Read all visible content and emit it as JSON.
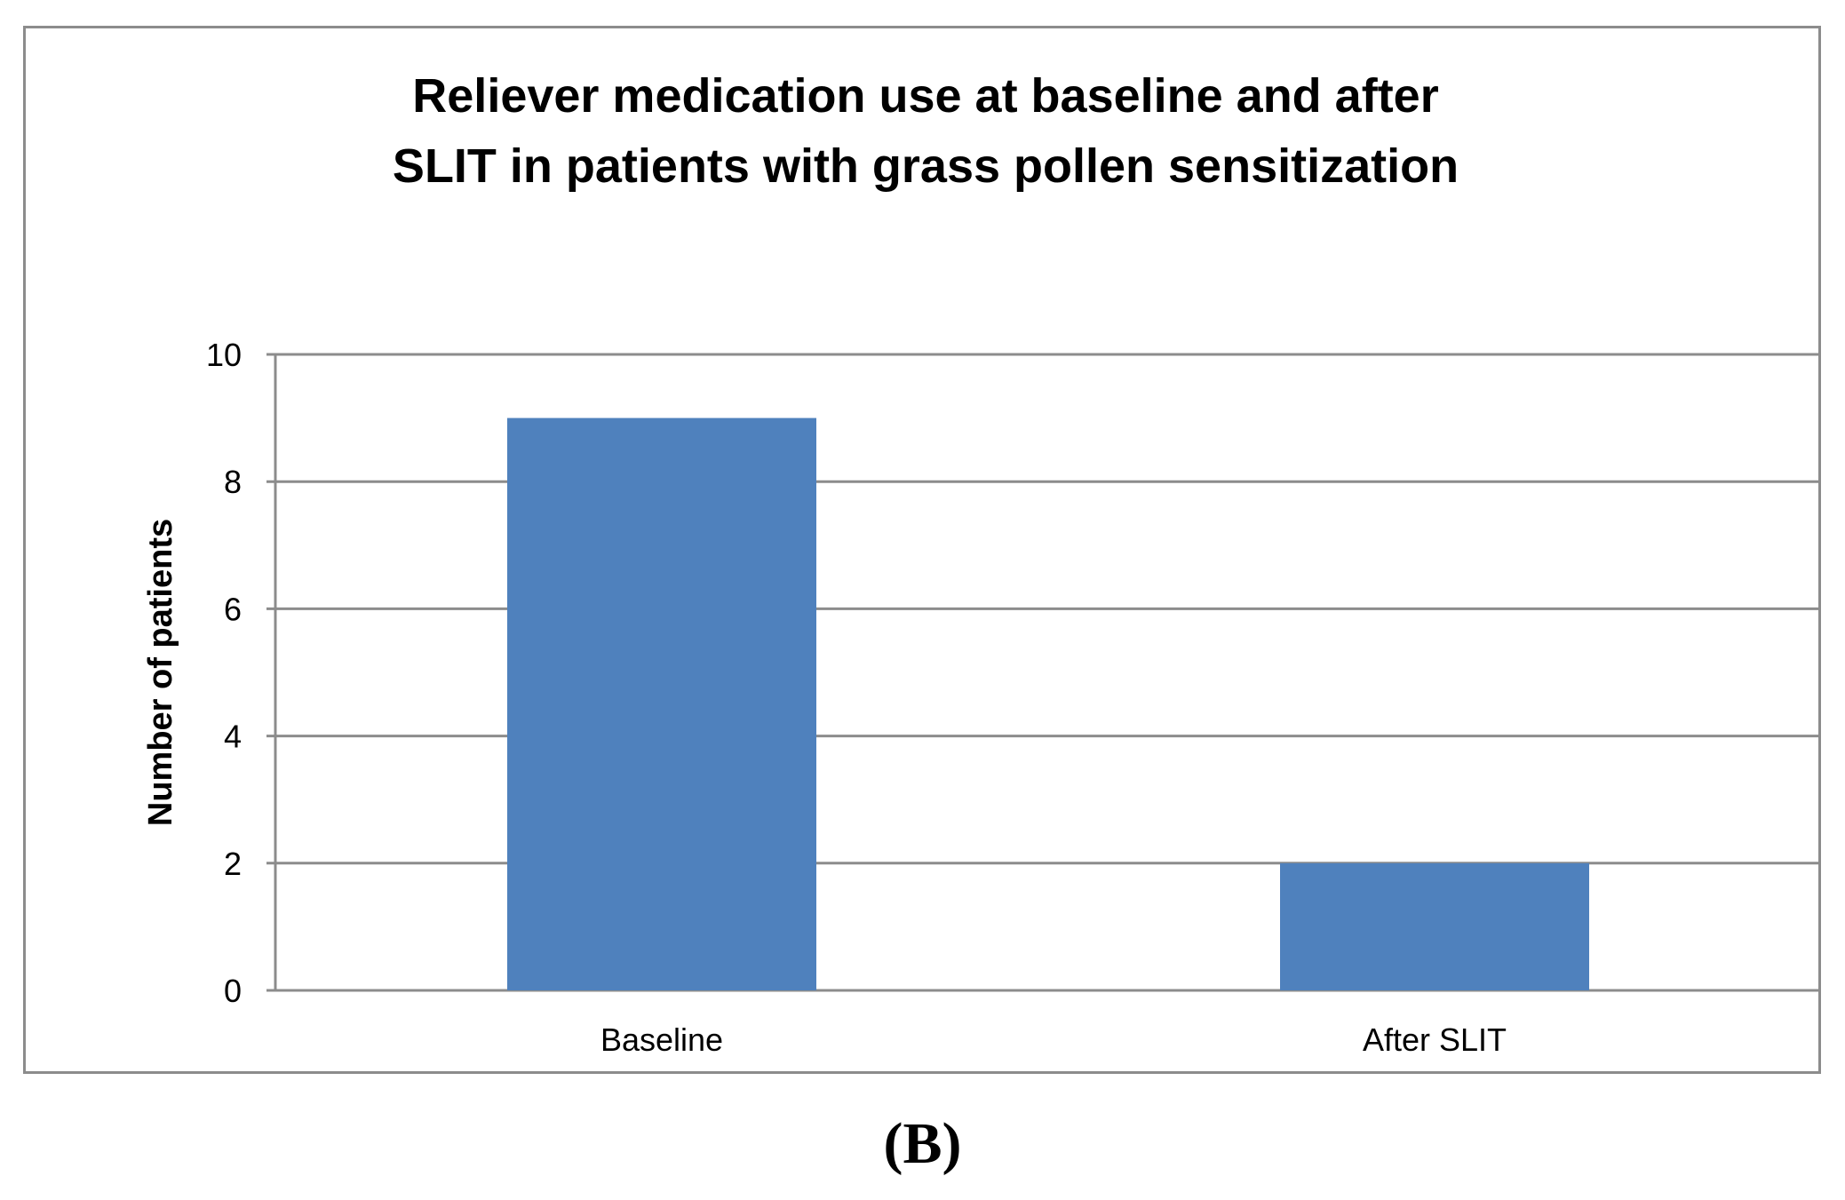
{
  "panel_label": "(B)",
  "chart_data": {
    "type": "bar",
    "title_lines": [
      "Reliever medication use at baseline and after",
      "SLIT in patients with grass pollen sensitization"
    ],
    "xlabel": "",
    "ylabel": "Number of patients",
    "categories": [
      "Baseline",
      "After SLIT"
    ],
    "values": [
      9,
      2
    ],
    "ylim": [
      0,
      10
    ],
    "yticks": [
      0,
      2,
      4,
      6,
      8,
      10
    ],
    "grid": true,
    "legend": "none",
    "colors": {
      "bar": "#4f81bd",
      "gridline": "#8c8c8c",
      "frame": "#8c8c8c"
    }
  }
}
